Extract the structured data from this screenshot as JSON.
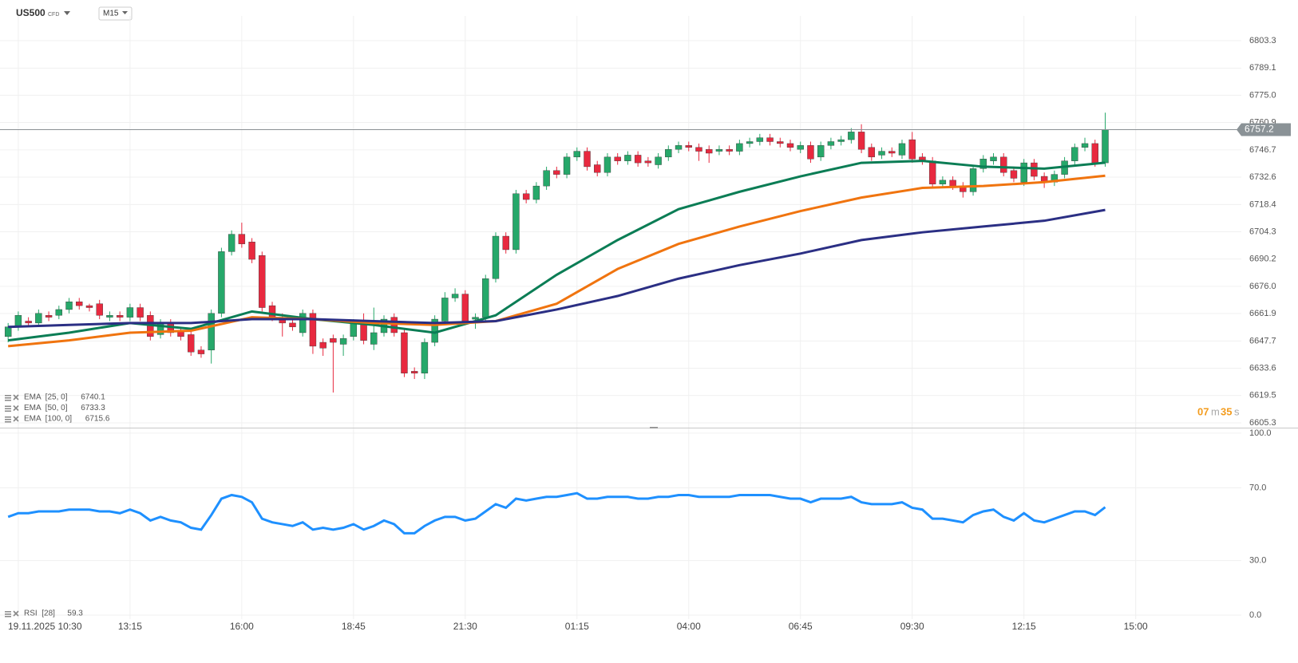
{
  "header": {
    "symbol": "US500",
    "instrument_type": "CFD",
    "timeframe": "M15"
  },
  "timer": {
    "minutes": "07",
    "minutes_unit": "m",
    "seconds": "35",
    "seconds_unit": "s"
  },
  "chart_data": [
    {
      "type": "candlestick",
      "up_color": "#26a86a",
      "down_color": "#e8293f",
      "open": [
        6650,
        6655,
        6658,
        6657,
        6661,
        6661,
        6664,
        6668,
        6666,
        6667,
        6660,
        6661,
        6660,
        6665,
        6661,
        6651,
        6657,
        6653,
        6651,
        6643,
        6643,
        6662,
        6694,
        6703,
        6699,
        6692,
        6666,
        6660,
        6657,
        6652,
        6662,
        6647,
        6649,
        6646,
        6650,
        6657,
        6646,
        6652,
        6660,
        6652,
        6632,
        6631,
        6647,
        6658,
        6670,
        6672,
        6659,
        6660,
        6680,
        6702,
        6695,
        6724,
        6721,
        6728,
        6736,
        6734,
        6743,
        6746,
        6739,
        6735,
        6743,
        6741,
        6744,
        6741,
        6739,
        6743,
        6747,
        6749,
        6748,
        6747,
        6746,
        6747,
        6746,
        6750,
        6751,
        6753,
        6751,
        6750,
        6747,
        6749,
        6743,
        6749,
        6751,
        6752,
        6756,
        6748,
        6744,
        6746,
        6744,
        6752,
        6743,
        6741,
        6729,
        6731,
        6728,
        6725,
        6737,
        6741,
        6743,
        6736,
        6730,
        6740,
        6733,
        6730,
        6734,
        6741,
        6748,
        6750,
        6740
      ],
      "high": [
        6657,
        6663,
        6660,
        6664,
        6663,
        6666,
        6670,
        6670,
        6667,
        6669,
        6663,
        6663,
        6667,
        6667,
        6663,
        6659,
        6659,
        6655,
        6653,
        6645,
        6664,
        6696,
        6705,
        6709,
        6701,
        6694,
        6668,
        6662,
        6659,
        6664,
        6664,
        6649,
        6651,
        6651,
        6659,
        6662,
        6665,
        6661,
        6662,
        6654,
        6634,
        6649,
        6661,
        6673,
        6675,
        6674,
        6662,
        6682,
        6704,
        6704,
        6726,
        6726,
        6730,
        6738,
        6738,
        6745,
        6748,
        6748,
        6741,
        6745,
        6745,
        6746,
        6746,
        6743,
        6745,
        6749,
        6751,
        6751,
        6750,
        6749,
        6749,
        6749,
        6752,
        6753,
        6755,
        6755,
        6753,
        6752,
        6751,
        6751,
        6751,
        6753,
        6754,
        6758,
        6760,
        6750,
        6748,
        6748,
        6752,
        6756,
        6745,
        6743,
        6733,
        6733,
        6730,
        6739,
        6744,
        6745,
        6745,
        6738,
        6742,
        6742,
        6735,
        6736,
        6743,
        6750,
        6753,
        6752,
        6766
      ],
      "low": [
        6647,
        6653,
        6655,
        6655,
        6658,
        6659,
        6662,
        6664,
        6663,
        6659,
        6658,
        6658,
        6658,
        6658,
        6648,
        6649,
        6650,
        6648,
        6640,
        6639,
        6636,
        6660,
        6692,
        6696,
        6688,
        6663,
        6658,
        6650,
        6653,
        6650,
        6641,
        6640,
        6621,
        6640,
        6648,
        6646,
        6643,
        6650,
        6650,
        6629,
        6628,
        6628,
        6645,
        6656,
        6668,
        6656,
        6654,
        6658,
        6678,
        6693,
        6693,
        6719,
        6719,
        6726,
        6732,
        6732,
        6741,
        6736,
        6733,
        6733,
        6739,
        6739,
        6738,
        6738,
        6737,
        6741,
        6745,
        6746,
        6741,
        6740,
        6744,
        6744,
        6744,
        6748,
        6749,
        6749,
        6748,
        6746,
        6745,
        6740,
        6741,
        6747,
        6749,
        6750,
        6745,
        6741,
        6742,
        6743,
        6742,
        6740,
        6739,
        6727,
        6727,
        6726,
        6722,
        6723,
        6735,
        6739,
        6733,
        6730,
        6728,
        6731,
        6727,
        6728,
        6732,
        6739,
        6746,
        6738,
        6738
      ],
      "close": [
        6655,
        6661,
        6657,
        6662,
        6660,
        6664,
        6668,
        6666,
        6665,
        6661,
        6661,
        6660,
        6665,
        6660,
        6650,
        6657,
        6652,
        6650,
        6642,
        6641,
        6662,
        6694,
        6703,
        6698,
        6690,
        6665,
        6660,
        6657,
        6655,
        6662,
        6645,
        6644,
        6647,
        6649,
        6657,
        6648,
        6652,
        6659,
        6652,
        6631,
        6631,
        6647,
        6659,
        6670,
        6672,
        6658,
        6660,
        6680,
        6702,
        6695,
        6724,
        6721,
        6728,
        6736,
        6734,
        6743,
        6746,
        6738,
        6735,
        6743,
        6741,
        6744,
        6740,
        6740,
        6743,
        6747,
        6749,
        6748,
        6746,
        6745,
        6747,
        6746,
        6750,
        6751,
        6753,
        6751,
        6750,
        6748,
        6749,
        6742,
        6749,
        6751,
        6752,
        6756,
        6747,
        6743,
        6746,
        6745,
        6750,
        6742,
        6741,
        6729,
        6731,
        6728,
        6725,
        6737,
        6742,
        6743,
        6735,
        6732,
        6740,
        6733,
        6730,
        6734,
        6741,
        6748,
        6750,
        6740,
        6757.2
      ],
      "series": [
        {
          "name": "EMA  [25, 0]",
          "color": "#0b7d55",
          "x": [
            0,
            6,
            12,
            18,
            24,
            30,
            36,
            42,
            48,
            54,
            60,
            66,
            72,
            78,
            84,
            90,
            96,
            102,
            108
          ],
          "values": [
            6648,
            6652,
            6657,
            6654,
            6663,
            6659,
            6656,
            6652,
            6661,
            6682,
            6700,
            6716,
            6725,
            6733,
            6740,
            6741,
            6738,
            6737,
            6740.1
          ]
        },
        {
          "name": "EMA  [50, 0]",
          "color": "#f0740f",
          "x": [
            0,
            6,
            12,
            18,
            24,
            30,
            36,
            42,
            48,
            54,
            60,
            66,
            72,
            78,
            84,
            90,
            96,
            102,
            108
          ],
          "values": [
            6645,
            6648,
            6652,
            6653,
            6660,
            6659,
            6657,
            6656,
            6658,
            6667,
            6685,
            6698,
            6707,
            6715,
            6722,
            6727,
            6728,
            6730,
            6733.3
          ]
        },
        {
          "name": "EMA  [100, 0]",
          "color": "#2b2f84",
          "x": [
            0,
            6,
            12,
            18,
            24,
            30,
            36,
            42,
            48,
            54,
            60,
            66,
            72,
            78,
            84,
            90,
            96,
            102,
            108
          ],
          "values": [
            6655,
            6656,
            6657,
            6657,
            6659,
            6659,
            6658,
            6657,
            6658,
            6664,
            6671,
            6680,
            6687,
            6693,
            6700,
            6704,
            6707,
            6710,
            6715.6
          ]
        }
      ],
      "xlim": [
        -0.8,
        121.4
      ],
      "xticks": [
        {
          "value": 1,
          "label": "19.11.2025 10:30"
        },
        {
          "value": 12,
          "label": "13:15"
        },
        {
          "value": 23,
          "label": "16:00"
        },
        {
          "value": 34,
          "label": "18:45"
        },
        {
          "value": 45,
          "label": "21:30"
        },
        {
          "value": 56,
          "label": "01:15"
        },
        {
          "value": 67,
          "label": "04:00"
        },
        {
          "value": 78,
          "label": "06:45"
        },
        {
          "value": 89,
          "label": "09:30"
        },
        {
          "value": 100,
          "label": "12:15"
        },
        {
          "value": 111,
          "label": "15:00"
        }
      ],
      "ylim": [
        6602.8,
        6816.1
      ],
      "yticks": [
        6803.3,
        6789.1,
        {
          "value": 6775.0,
          "label": "6775.0"
        },
        6760.9,
        6746.7,
        6732.6,
        6718.4,
        6704.3,
        6690.2,
        {
          "value": 6676.0,
          "label": "6676.0"
        },
        6661.9,
        6647.7,
        6633.6,
        6619.5,
        6605.3
      ],
      "grid": true
    },
    {
      "type": "line",
      "series": [
        {
          "name": "RSI  [28]",
          "color": "#1e90ff",
          "values": [
            54,
            56,
            56,
            57,
            57,
            57,
            58,
            58,
            58,
            57,
            57,
            56,
            58,
            56,
            52,
            54,
            52,
            51,
            48,
            47,
            55,
            64,
            66,
            65,
            62,
            53,
            51,
            50,
            49,
            51,
            47,
            48,
            47,
            48,
            50,
            47,
            49,
            52,
            50,
            45,
            45,
            49,
            52,
            54,
            54,
            52,
            53,
            57,
            61,
            59,
            64,
            63,
            64,
            65,
            65,
            66,
            67,
            64,
            64,
            65,
            65,
            65,
            64,
            64,
            65,
            65,
            66,
            66,
            65,
            65,
            65,
            65,
            66,
            66,
            66,
            66,
            65,
            64,
            64,
            62,
            64,
            64,
            64,
            65,
            62,
            61,
            61,
            61,
            62,
            59,
            58,
            53,
            53,
            52,
            51,
            55,
            57,
            58,
            54,
            52,
            56,
            52,
            51,
            53,
            55,
            57,
            57,
            55,
            59.3
          ]
        }
      ],
      "ylim": [
        -2.2,
        102.6
      ],
      "yticks": [
        {
          "value": 100,
          "label": "100.0"
        },
        {
          "value": 70,
          "label": "70.0"
        },
        {
          "value": 30,
          "label": "30.0"
        },
        {
          "value": 0,
          "label": "0.0"
        }
      ],
      "grid": true
    }
  ]
}
